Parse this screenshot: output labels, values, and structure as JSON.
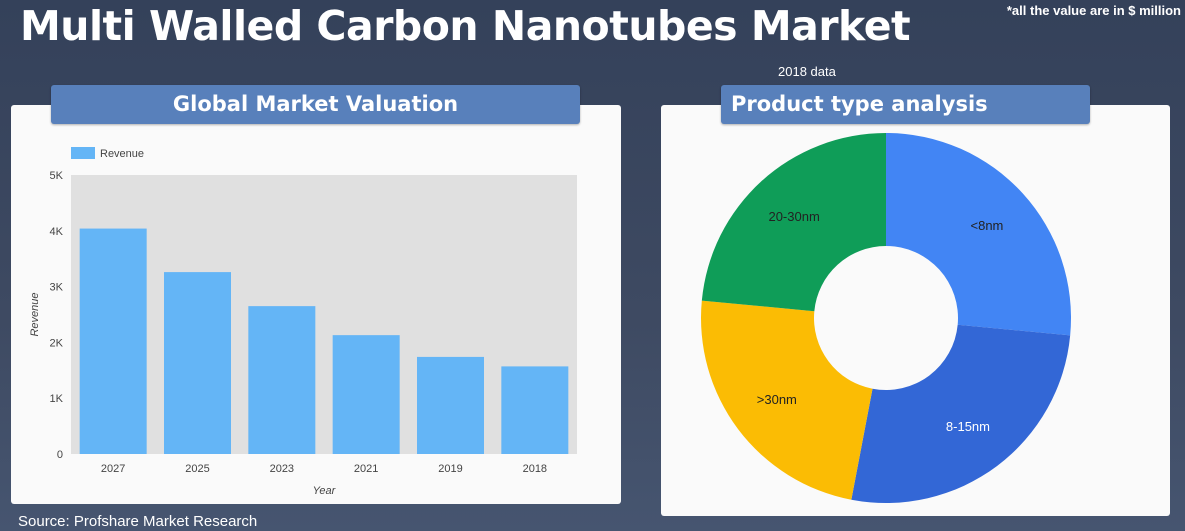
{
  "page": {
    "title": "Multi Walled Carbon Nanotubes Market",
    "note": "*all the value are in $ million",
    "source": "Source: Profshare Market Research"
  },
  "left_panel": {
    "title": "Global Market Valuation"
  },
  "right_panel": {
    "title": "Product type analysis",
    "subtitle": "2018 data"
  },
  "colors": {
    "bar": "#64b5f6",
    "plot_bg": "#e0e0e0",
    "banner": "#5880bb",
    "lt8": "#4285f4",
    "8to15": "#3367d6",
    "gt30": "#fbbc04",
    "20to30": "#0f9d58"
  },
  "chart_data": [
    {
      "type": "bar",
      "title": "Global Market Valuation",
      "categories": [
        "2027",
        "2025",
        "2023",
        "2021",
        "2019",
        "2018"
      ],
      "series": [
        {
          "name": "Revenue",
          "values": [
            4040,
            3260,
            2650,
            2130,
            1740,
            1570
          ]
        }
      ],
      "xlabel": "Year",
      "ylabel": "Revenue",
      "ylim": [
        0,
        5000
      ],
      "yticks": [
        0,
        1000,
        2000,
        3000,
        4000,
        5000
      ],
      "ytick_labels": [
        "0",
        "1K",
        "2K",
        "3K",
        "4K",
        "5K"
      ],
      "legend": "top-left",
      "grid": false
    },
    {
      "type": "pie",
      "title": "Product type analysis",
      "subtitle": "2018 data",
      "donut": true,
      "labels": [
        "<8nm",
        "8-15nm",
        ">30nm",
        "20-30nm"
      ],
      "values": [
        26.5,
        26.5,
        23.5,
        23.5
      ],
      "legend": "none"
    }
  ]
}
